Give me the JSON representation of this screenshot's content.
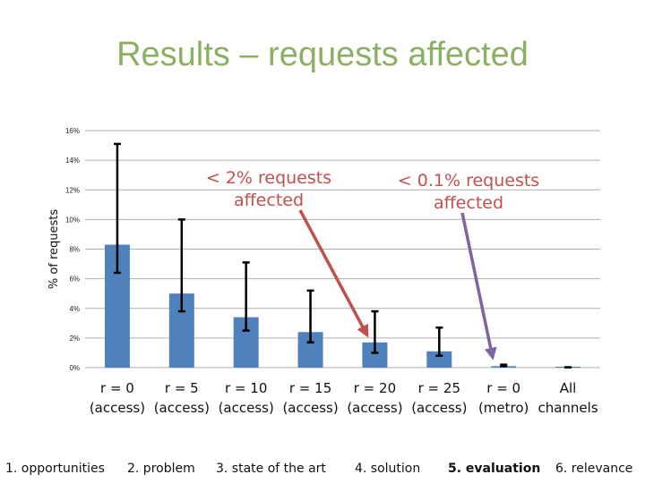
{
  "slide": {
    "title": "Results – requests affected"
  },
  "chart_data": {
    "type": "bar",
    "ylabel": "% of requests",
    "ylim": [
      0,
      16
    ],
    "yticks": [
      "0%",
      "2%",
      "4%",
      "6%",
      "8%",
      "10%",
      "12%",
      "14%",
      "16%"
    ],
    "grid": true,
    "categories": [
      [
        "r = 0",
        "(access)"
      ],
      [
        "r = 5",
        "(access)"
      ],
      [
        "r = 10",
        "(access)"
      ],
      [
        "r = 15",
        "(access)"
      ],
      [
        "r = 20",
        "(access)"
      ],
      [
        "r = 25",
        "(access)"
      ],
      [
        "r = 0",
        "(metro)"
      ],
      [
        "All",
        "channels"
      ]
    ],
    "values": [
      8.3,
      5.0,
      3.4,
      2.4,
      1.7,
      1.1,
      0.1,
      0.02
    ],
    "error_low": [
      6.4,
      3.8,
      2.5,
      1.7,
      1.0,
      0.8,
      0.1,
      0.02
    ],
    "error_high": [
      15.1,
      10.0,
      7.1,
      5.2,
      3.8,
      2.7,
      0.2,
      0.02
    ],
    "bar_color": "#4f81bd",
    "annotations": [
      {
        "text": [
          "< 2% requests",
          "affected"
        ],
        "color": "#c0504d",
        "points_to": "r = 20 (access)"
      },
      {
        "text": [
          "< 0.1% requests",
          "affected"
        ],
        "color": "#8064a2",
        "points_to": "r = 0 (metro)"
      }
    ]
  },
  "nav": {
    "items": [
      {
        "label": "1. opportunities",
        "active": false
      },
      {
        "label": "2. problem",
        "active": false
      },
      {
        "label": "3. state of the art",
        "active": false
      },
      {
        "label": "4. solution",
        "active": false
      },
      {
        "label": "5. evaluation",
        "active": true
      },
      {
        "label": "6. relevance",
        "active": false
      }
    ]
  }
}
